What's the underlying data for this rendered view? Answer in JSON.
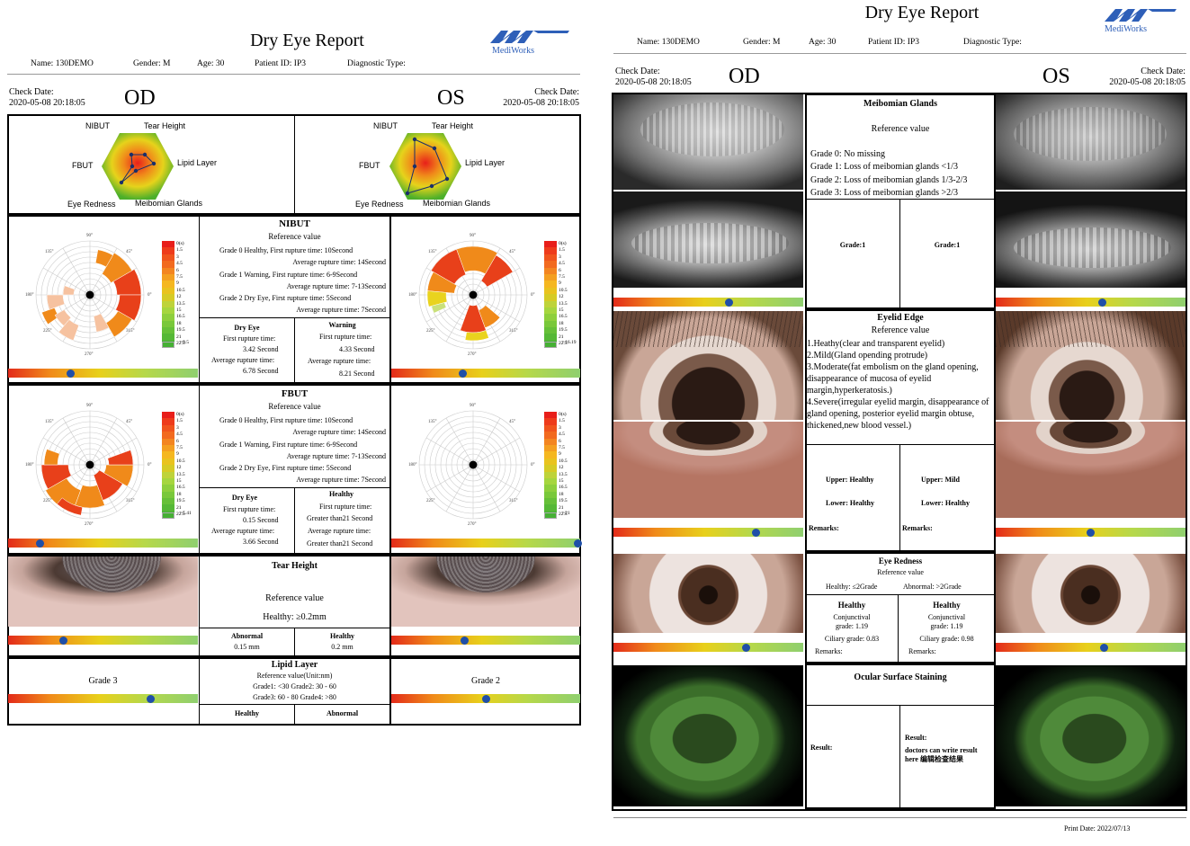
{
  "report_title": "Dry Eye Report",
  "brand": "MediWorks",
  "patient": {
    "name": "Name: 130DEMO",
    "gender": "Gender: M",
    "age": "Age: 30",
    "id": "Patient ID: IP3",
    "diag": "Diagnostic Type:"
  },
  "check_date_label": "Check Date:",
  "check_date": "2020-05-08 20:18:05",
  "od": "OD",
  "os": "OS",
  "radar_labels": {
    "nibut": "NIBUT",
    "tear": "Tear Height",
    "fbut": "FBUT",
    "lipid": "Lipid Layer",
    "red": "Eye Redness",
    "mg": "Meibomian Glands"
  },
  "polar_labels": {
    "a90": "90°",
    "a0": "0°",
    "a180": "180°",
    "a270": "270°",
    "a45": "45°",
    "a135": "135°",
    "a225": "225°",
    "a315": "315°"
  },
  "scale_values": [
    "0(s)",
    "1.5",
    "3",
    "4.5",
    "6",
    "7.5",
    "9",
    "10.5",
    "12",
    "13.5",
    "15",
    "16.5",
    "18",
    "19.5",
    "21",
    "22.5"
  ],
  "nibut": {
    "title": "NIBUT",
    "ref": "Reference value",
    "lines": [
      "Grade 0 Healthy, First rupture time:  10Second",
      "Average rupture time: 14Second",
      "Grade 1 Warning, First rupture time:  6-9Second",
      "Average rupture time: 7-13Second",
      "Grade 2 Dry Eye, First rupture time:  5Second",
      "Average rupture time: 7Second"
    ],
    "od": {
      "status": "Dry Eye",
      "first_label": "First rupture time:",
      "first": "3.42 Second",
      "avg_label": "Average rupture time:",
      "avg": "6.78 Second",
      "legend": ">9.5",
      "bar": 0.33
    },
    "os": {
      "status": "Warning",
      "first_label": "First rupture time:",
      "first": "4.33 Second",
      "avg_label": "Average rupture time:",
      "avg": "8.21 Second",
      "legend": ">16.19",
      "bar": 0.38
    }
  },
  "fbut": {
    "title": "FBUT",
    "ref": "Reference value",
    "lines": [
      "Grade 0 Healthy, First rupture time:  10Second",
      "Average rupture time: 14Second",
      "Grade 1 Warning, First rupture time:  6-9Second",
      "Average rupture time: 7-13Second",
      "Grade 2 Dry Eye, First rupture time:  5Second",
      "Average rupture time: 7Second"
    ],
    "od": {
      "status": "Dry Eye",
      "first_label": "First rupture time:",
      "first": "0.15 Second",
      "avg_label": "Average rupture time:",
      "avg": "3.66 Second",
      "legend": ">5.41",
      "bar": 0.17
    },
    "os": {
      "status": "Healthy",
      "first_label": "First rupture time:",
      "first": "Greater than21 Second",
      "avg_label": "Average rupture time:",
      "avg": "Greater than21 Second",
      "legend": ">21",
      "bar": 0.99
    }
  },
  "tear_height": {
    "title": "Tear Height",
    "ref": "Reference value",
    "healthy": "Healthy:   ≥0.2mm",
    "od": {
      "status": "Abnormal",
      "value": "0.15 mm",
      "bar": 0.29
    },
    "os": {
      "status": "Healthy",
      "value": "0.2 mm",
      "bar": 0.39
    }
  },
  "lipid": {
    "title": "Lipid Layer",
    "ref": "Reference value(Unit:nm)",
    "line1": "Grade1: <30 Grade2: 30 - 60",
    "line2": "Grade3: 60 - 80 Grade4: >80",
    "od": {
      "grade": "Grade 3",
      "status": "Healthy",
      "bar": 0.75
    },
    "os": {
      "grade": "Grade 2",
      "status": "Abnormal",
      "bar": 0.5
    }
  },
  "meibomian": {
    "title": "Meibomian Glands",
    "ref": "Reference value",
    "lines": [
      "Grade 0: No missing",
      "Grade 1: Loss of meibomian glands <1/3",
      "Grade 2: Loss of meibomian glands 1/3-2/3",
      "Grade 3: Loss of meibomian glands >2/3"
    ],
    "od": {
      "grade": "Grade:1",
      "bar": 0.61
    },
    "os": {
      "grade": "Grade:1",
      "bar": 0.56
    }
  },
  "eyelid": {
    "title": "Eyelid Edge",
    "ref": "Reference value",
    "lines": [
      "1.Heathy(clear and transparent eyelid)",
      "2.Mild(Gland opending protrude)",
      "3.Moderate(fat embolism on the gland opening, disappearance of mucosa of eyelid margin,hyperkeratosis.)",
      "4.Severe(irregular eyelid margin, disappearance of gland opening, posterior eyelid margin obtuse, thickened,new blood vessel.)"
    ],
    "od": {
      "upper": "Upper: Healthy",
      "lower": "Lower: Healthy",
      "remarks": "Remarks:",
      "bar": 0.75
    },
    "os": {
      "upper": "Upper: Mild",
      "lower": "Lower: Healthy",
      "remarks": "Remarks:",
      "bar": 0.5
    }
  },
  "redness": {
    "title": "Eye Redness",
    "ref": "Reference value",
    "healthy": "Healthy:  ≤2Grade",
    "abnormal": "Abnormal:  >2Grade",
    "od": {
      "status": "Healthy",
      "conj_label": "Conjunctival",
      "conj": "grade: 1.19",
      "cil": "Ciliary grade: 0.83",
      "remarks": "Remarks:",
      "bar": 0.7
    },
    "os": {
      "status": "Healthy",
      "conj_label": "Conjunctival",
      "conj": "grade: 1.19",
      "cil": "Ciliary grade: 0.98",
      "remarks": "Remarks:",
      "bar": 0.57
    }
  },
  "staining": {
    "title": "Ocular Surface Staining",
    "od": {
      "result": "Result:"
    },
    "os": {
      "result": "Result:",
      "note": "doctors can write result here 编辑检查结果"
    }
  },
  "print_date": "Print Date: 2022/07/13",
  "colors": {
    "accent": "#1f4fa8",
    "logo": "#2e5fb8"
  }
}
